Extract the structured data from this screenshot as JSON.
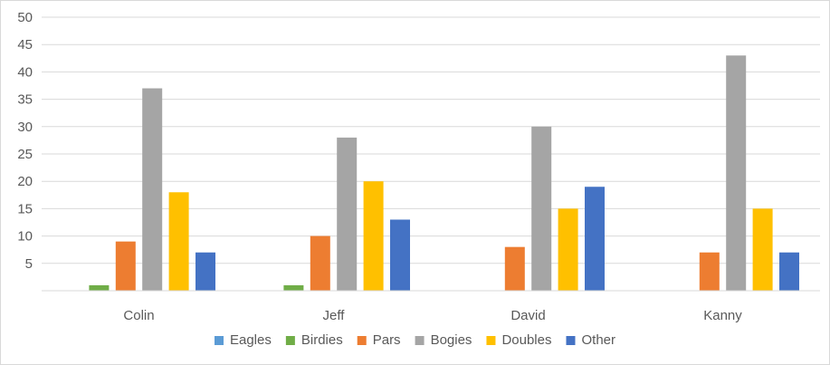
{
  "chart_data": {
    "type": "bar",
    "categories": [
      "Colin",
      "Jeff",
      "David",
      "Kanny"
    ],
    "series": [
      {
        "name": "Eagles",
        "color": "#5B9BD5",
        "values": [
          0,
          0,
          0,
          0
        ]
      },
      {
        "name": "Birdies",
        "color": "#70AD47",
        "values": [
          1,
          1,
          0,
          0
        ]
      },
      {
        "name": "Pars",
        "color": "#ED7D31",
        "values": [
          9,
          10,
          8,
          7
        ]
      },
      {
        "name": "Bogies",
        "color": "#A5A5A5",
        "values": [
          37,
          28,
          30,
          43
        ]
      },
      {
        "name": "Doubles",
        "color": "#FFC000",
        "values": [
          18,
          20,
          15,
          15
        ]
      },
      {
        "name": "Other",
        "color": "#4472C4",
        "values": [
          7,
          13,
          19,
          7
        ]
      }
    ],
    "yticks": [
      "5",
      "10",
      "15",
      "20",
      "25",
      "30",
      "35",
      "40",
      "45",
      "50"
    ],
    "ylim": [
      0,
      50
    ],
    "title": "",
    "xlabel": "",
    "ylabel": "",
    "grid": true,
    "legend_position": "bottom"
  }
}
